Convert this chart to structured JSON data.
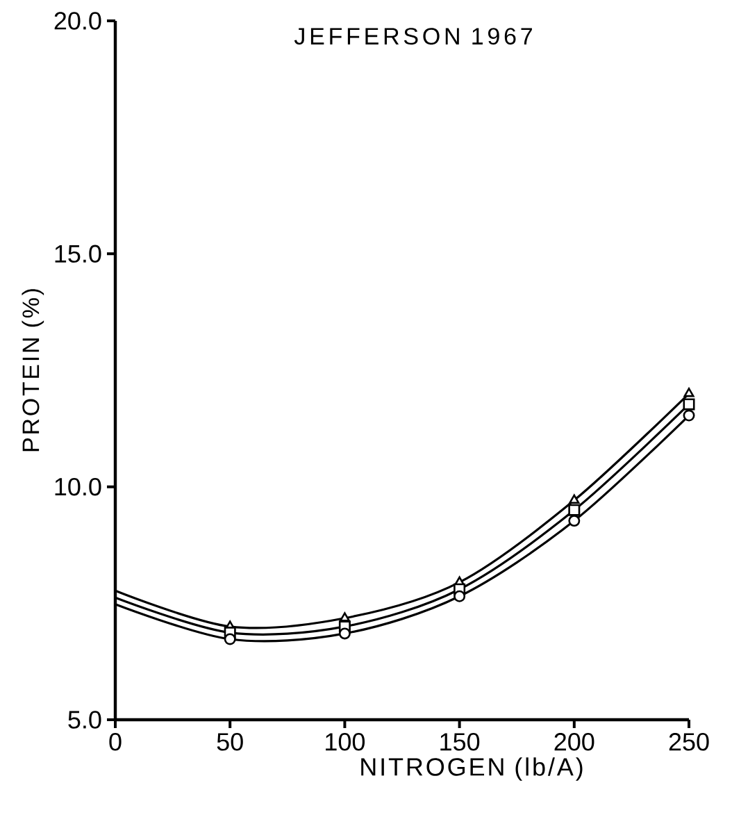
{
  "chart_data": {
    "type": "line",
    "title": "JEFFERSON 1967",
    "xlabel": "NITROGEN (lb/A)",
    "ylabel": "PROTEIN    (%)",
    "xlim": [
      0,
      250
    ],
    "ylim": [
      5,
      20
    ],
    "xticks": [
      0,
      50,
      100,
      150,
      200,
      250
    ],
    "yticks": [
      {
        "value": 5,
        "label": "5.0"
      },
      {
        "value": 10,
        "label": "10.0"
      },
      {
        "value": 15,
        "label": "15.0"
      },
      {
        "value": 20,
        "label": "20.0"
      }
    ],
    "grid": false,
    "series": [
      {
        "color": "#000000",
        "marker": "none",
        "x": [
          0,
          50,
          100,
          150,
          200,
          250
        ],
        "values": [
          7.77,
          7.0,
          7.18,
          7.95,
          9.71,
          12.0
        ]
      },
      {
        "color": "#000000",
        "marker": "none",
        "x": [
          0,
          50,
          100,
          150,
          200,
          250
        ],
        "values": [
          7.62,
          6.87,
          7.0,
          7.8,
          9.5,
          11.77
        ]
      },
      {
        "color": "#000000",
        "marker": "none",
        "x": [
          0,
          50,
          100,
          150,
          200,
          250
        ],
        "values": [
          7.48,
          6.73,
          6.85,
          7.65,
          9.27,
          11.53
        ]
      },
      {
        "type": "scatter",
        "color": "#000000",
        "marker": "triangle",
        "x": [
          50,
          100,
          150,
          200,
          250
        ],
        "values": [
          7.0,
          7.18,
          7.95,
          9.71,
          12.0
        ]
      },
      {
        "type": "scatter",
        "color": "#000000",
        "marker": "square",
        "x": [
          50,
          100,
          150,
          200,
          250
        ],
        "values": [
          6.87,
          7.0,
          7.8,
          9.5,
          11.77
        ]
      },
      {
        "type": "scatter",
        "color": "#000000",
        "marker": "circle",
        "x": [
          50,
          100,
          150,
          200,
          250
        ],
        "values": [
          6.73,
          6.85,
          7.65,
          9.27,
          11.53
        ]
      }
    ]
  }
}
